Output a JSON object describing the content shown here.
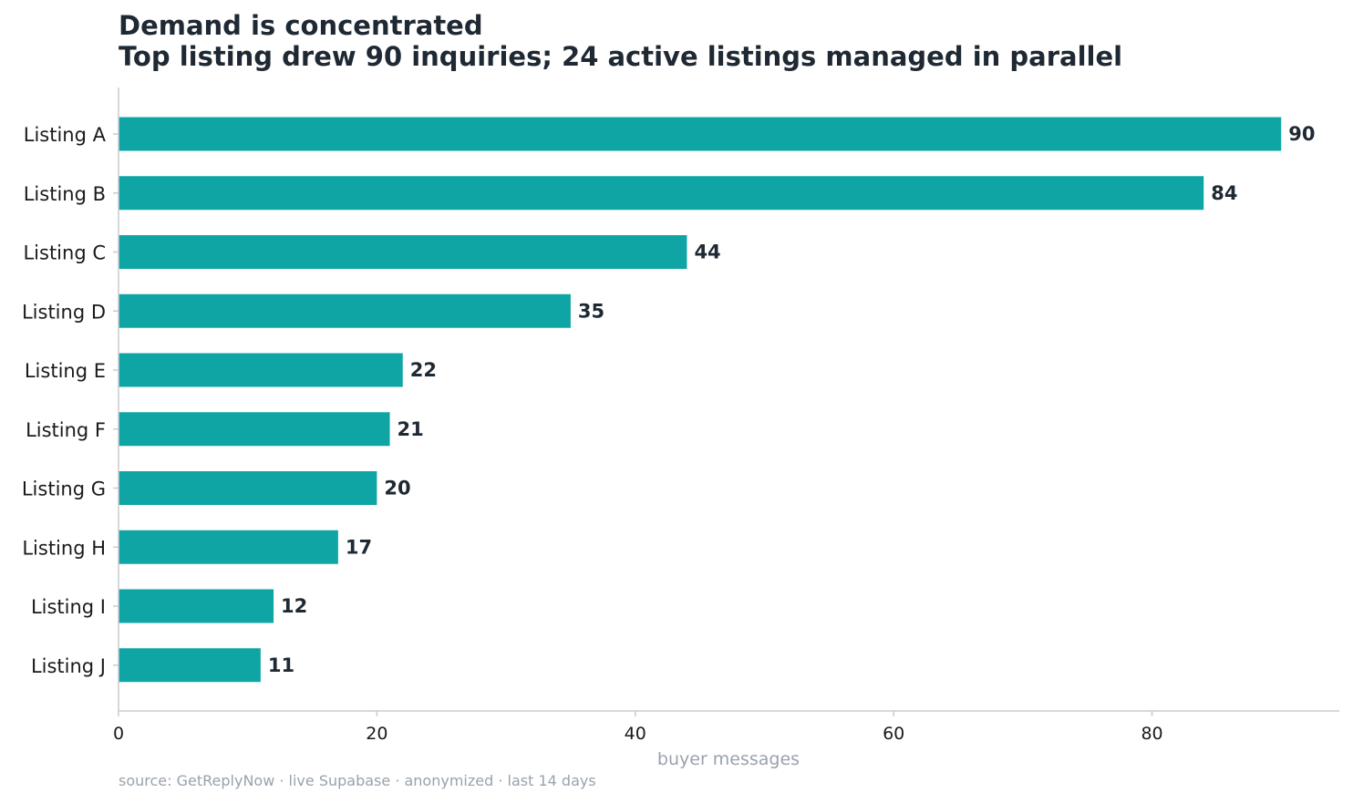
{
  "chart_data": {
    "type": "bar",
    "orientation": "horizontal",
    "title": "Demand is concentrated",
    "subtitle": "Top listing drew 90 inquiries; 24 active listings managed in parallel",
    "categories": [
      "Listing A",
      "Listing B",
      "Listing C",
      "Listing D",
      "Listing E",
      "Listing F",
      "Listing G",
      "Listing H",
      "Listing I",
      "Listing J"
    ],
    "values": [
      90,
      84,
      44,
      35,
      22,
      21,
      20,
      17,
      12,
      11
    ],
    "xlabel": "buyer messages",
    "ylabel": "",
    "xlim": [
      0,
      94.5
    ],
    "xticks": [
      0,
      20,
      40,
      60,
      80
    ],
    "grid": false,
    "bar_color": "#10a5a5",
    "source": "source: GetReplyNow · live Supabase · anonymized · last 14 days"
  }
}
